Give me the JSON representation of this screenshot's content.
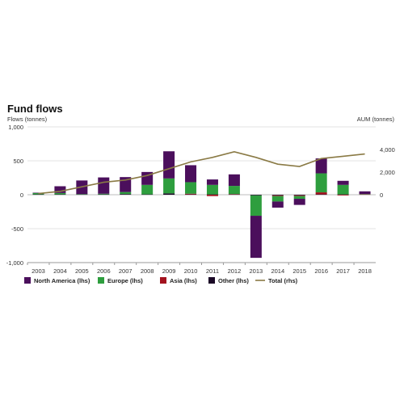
{
  "chart_data": {
    "type": "bar",
    "title": "Fund flows",
    "ylabel": "Flows (tonnes)",
    "y2label": "AUM (tonnes)",
    "categories": [
      "2003",
      "2004",
      "2005",
      "2006",
      "2007",
      "2008",
      "2009",
      "2010",
      "2011",
      "2012",
      "2013",
      "2014",
      "2015",
      "2016",
      "2017",
      "2018"
    ],
    "ylim": [
      -1000,
      1000
    ],
    "yticks": [
      -1000,
      -500,
      0,
      500,
      1000
    ],
    "ytick_labels": [
      "-1,000",
      "-500",
      "0",
      "500",
      "1,000"
    ],
    "y2lim": [
      -6000,
      6000
    ],
    "y2ticks": [
      0,
      2000,
      4000
    ],
    "y2tick_labels": [
      "0",
      "2,000",
      "4,000"
    ],
    "grid": true,
    "legend_position": "bottom",
    "series": [
      {
        "name": "North America (lhs)",
        "type": "bar",
        "axis": "left",
        "color": "#4b0f5c",
        "values": [
          5,
          100,
          200,
          240,
          220,
          190,
          400,
          250,
          80,
          170,
          -620,
          -90,
          -90,
          220,
          60,
          40
        ]
      },
      {
        "name": "Europe (lhs)",
        "type": "bar",
        "axis": "left",
        "color": "#2e9e3e",
        "values": [
          20,
          20,
          5,
          10,
          30,
          140,
          220,
          170,
          140,
          120,
          -300,
          -80,
          -40,
          280,
          140,
          5
        ]
      },
      {
        "name": "Asia (lhs)",
        "type": "bar",
        "axis": "left",
        "color": "#a3121e",
        "values": [
          0,
          0,
          0,
          0,
          0,
          0,
          0,
          10,
          -20,
          5,
          0,
          -10,
          -10,
          30,
          -10,
          5
        ]
      },
      {
        "name": "Other (lhs)",
        "type": "bar",
        "axis": "left",
        "color": "#1a0826",
        "values": [
          5,
          5,
          5,
          5,
          10,
          5,
          20,
          5,
          5,
          5,
          -10,
          -10,
          -10,
          5,
          5,
          0
        ]
      },
      {
        "name": "Total (rhs)",
        "type": "line",
        "axis": "right",
        "color": "#8a7a45",
        "values": [
          100,
          300,
          700,
          1100,
          1300,
          1700,
          2300,
          2900,
          3300,
          3800,
          3300,
          2700,
          2500,
          3200,
          3400,
          3600
        ]
      }
    ]
  }
}
